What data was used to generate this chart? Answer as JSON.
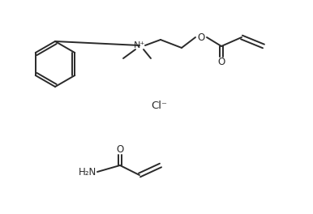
{
  "background_color": "#ffffff",
  "line_color": "#2a2a2a",
  "line_width": 1.4,
  "fig_width": 3.86,
  "fig_height": 2.64,
  "dpi": 100,
  "cl_text": "Cl⁻",
  "nh2_text": "H₂N",
  "n_plus_text": "N⁺",
  "o_text": "O"
}
